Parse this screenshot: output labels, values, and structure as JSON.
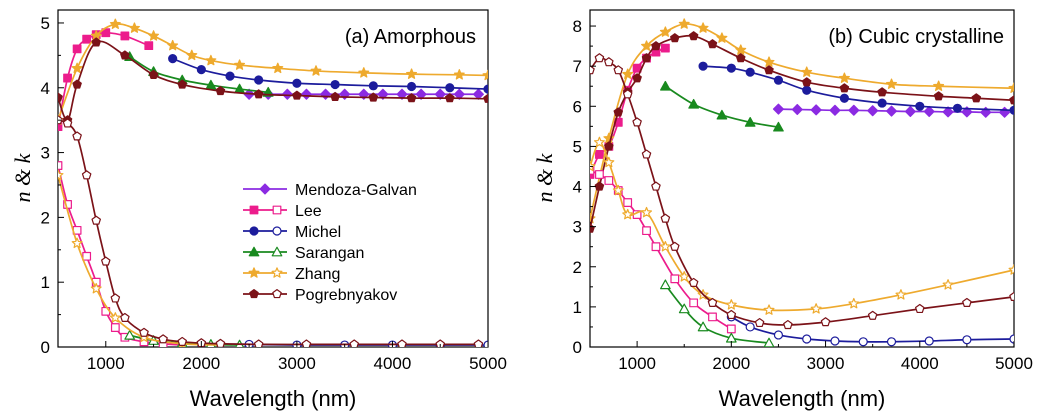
{
  "colors": {
    "Mendoza-Galvan": "#8b2be2",
    "Lee": "#ec1c8c",
    "Michel": "#1c1c9c",
    "Sarangan": "#198a1f",
    "Zhang": "#eeaa2e",
    "Pogrebnyakov": "#7b1218"
  },
  "legend": [
    {
      "name": "Mendoza-Galvan",
      "marker": "diamond",
      "fill_n": true,
      "has_k": false
    },
    {
      "name": "Lee",
      "marker": "square",
      "has_k": true
    },
    {
      "name": "Michel",
      "marker": "circle",
      "has_k": true
    },
    {
      "name": "Sarangan",
      "marker": "triangle",
      "has_k": true
    },
    {
      "name": "Zhang",
      "marker": "star",
      "has_k": true
    },
    {
      "name": "Pogrebnyakov",
      "marker": "pentagon",
      "has_k": true
    }
  ],
  "chart_data": [
    {
      "type": "line",
      "panel_title": "(a) Amorphous",
      "xlabel": "Wavelength (nm)",
      "ylabel": "n & k",
      "xlim": [
        500,
        5000
      ],
      "ylim": [
        0,
        5.2
      ],
      "xticks": [
        1000,
        2000,
        3000,
        4000,
        5000
      ],
      "yticks": [
        0,
        1,
        2,
        3,
        4,
        5
      ],
      "series": [
        {
          "name": "Mendoza-Galvan",
          "quantity": "n",
          "x": [
            2500,
            2700,
            2900,
            3100,
            3300,
            3500,
            3700,
            3900,
            4100,
            4300,
            4500,
            4700,
            4900
          ],
          "y": [
            3.9,
            3.9,
            3.9,
            3.9,
            3.9,
            3.9,
            3.9,
            3.9,
            3.9,
            3.9,
            3.9,
            3.9,
            3.9
          ]
        },
        {
          "name": "Lee",
          "quantity": "n",
          "x": [
            500,
            600,
            700,
            800,
            900,
            1000,
            1200,
            1450
          ],
          "y": [
            3.4,
            4.15,
            4.6,
            4.75,
            4.82,
            4.85,
            4.8,
            4.65
          ]
        },
        {
          "name": "Michel",
          "quantity": "n",
          "x": [
            1700,
            2000,
            2300,
            2600,
            3000,
            3400,
            3800,
            4200,
            4600,
            5000
          ],
          "y": [
            4.45,
            4.28,
            4.18,
            4.12,
            4.07,
            4.05,
            4.03,
            4.02,
            4.0,
            3.98
          ]
        },
        {
          "name": "Sarangan",
          "quantity": "n",
          "x": [
            1250,
            1500,
            1800,
            2100,
            2400,
            2700
          ],
          "y": [
            4.48,
            4.25,
            4.12,
            4.04,
            3.98,
            3.93
          ]
        },
        {
          "name": "Zhang",
          "quantity": "n",
          "x": [
            500,
            700,
            900,
            1100,
            1300,
            1500,
            1700,
            1900,
            2100,
            2400,
            2800,
            3200,
            3700,
            4200,
            4700,
            5000
          ],
          "y": [
            3.5,
            4.3,
            4.8,
            4.98,
            4.92,
            4.8,
            4.65,
            4.5,
            4.42,
            4.35,
            4.3,
            4.26,
            4.23,
            4.21,
            4.2,
            4.19
          ]
        },
        {
          "name": "Pogrebnyakov",
          "quantity": "n",
          "x": [
            500,
            600,
            700,
            900,
            1200,
            1500,
            1800,
            2200,
            2600,
            3000,
            3400,
            3800,
            4200,
            4600,
            5000
          ],
          "y": [
            3.85,
            3.5,
            4.05,
            4.7,
            4.5,
            4.2,
            4.05,
            3.95,
            3.9,
            3.88,
            3.86,
            3.85,
            3.84,
            3.84,
            3.83
          ]
        },
        {
          "name": "Lee",
          "quantity": "k",
          "x": [
            500,
            600,
            700,
            800,
            900,
            1000,
            1100,
            1200,
            1400,
            1600,
            1800
          ],
          "y": [
            2.8,
            2.2,
            1.8,
            1.4,
            1.0,
            0.55,
            0.3,
            0.15,
            0.08,
            0.05,
            0.03
          ]
        },
        {
          "name": "Michel",
          "quantity": "k",
          "x": [
            2000,
            2500,
            3000,
            3500,
            4000,
            4500,
            5000
          ],
          "y": [
            0.05,
            0.04,
            0.03,
            0.03,
            0.03,
            0.03,
            0.03
          ]
        },
        {
          "name": "Sarangan",
          "quantity": "k",
          "x": [
            1250,
            1500,
            1800,
            2100,
            2400
          ],
          "y": [
            0.18,
            0.1,
            0.06,
            0.04,
            0.03
          ]
        },
        {
          "name": "Zhang",
          "quantity": "k",
          "x": [
            500,
            700,
            900,
            1100,
            1400,
            1800,
            2200
          ],
          "y": [
            2.65,
            1.6,
            0.9,
            0.45,
            0.15,
            0.05,
            0.03
          ]
        },
        {
          "name": "Pogrebnyakov",
          "quantity": "k",
          "x": [
            500,
            600,
            700,
            800,
            900,
            1000,
            1100,
            1200,
            1400,
            1600,
            1800,
            2000,
            2200,
            2600,
            3100,
            3600,
            4100,
            4500,
            4900
          ],
          "y": [
            3.5,
            3.45,
            3.25,
            2.65,
            1.95,
            1.32,
            0.75,
            0.45,
            0.22,
            0.12,
            0.08,
            0.06,
            0.05,
            0.04,
            0.04,
            0.04,
            0.04,
            0.04,
            0.04
          ]
        }
      ]
    },
    {
      "type": "line",
      "panel_title": "(b) Cubic crystalline",
      "xlabel": "Wavelength (nm)",
      "ylabel": "n & k",
      "xlim": [
        500,
        5000
      ],
      "ylim": [
        0,
        8.4
      ],
      "xticks": [
        1000,
        2000,
        3000,
        4000,
        5000
      ],
      "yticks": [
        0,
        1,
        2,
        3,
        4,
        5,
        6,
        7,
        8
      ],
      "series": [
        {
          "name": "Mendoza-Galvan",
          "quantity": "n",
          "x": [
            2500,
            2700,
            2900,
            3100,
            3300,
            3500,
            3700,
            3900,
            4100,
            4300,
            4500,
            4700,
            4900
          ],
          "y": [
            5.93,
            5.92,
            5.91,
            5.9,
            5.9,
            5.89,
            5.88,
            5.87,
            5.87,
            5.86,
            5.86,
            5.85,
            5.85
          ]
        },
        {
          "name": "Lee",
          "quantity": "n",
          "x": [
            500,
            600,
            700,
            800,
            900,
            1000,
            1100,
            1200,
            1300
          ],
          "y": [
            4.3,
            4.8,
            5.0,
            5.6,
            6.4,
            6.95,
            7.2,
            7.35,
            7.45
          ]
        },
        {
          "name": "Michel",
          "quantity": "n",
          "x": [
            1700,
            2000,
            2200,
            2500,
            2800,
            3200,
            3600,
            4000,
            4400,
            5000
          ],
          "y": [
            7.0,
            6.95,
            6.85,
            6.65,
            6.4,
            6.2,
            6.08,
            6.0,
            5.95,
            5.9
          ]
        },
        {
          "name": "Sarangan",
          "quantity": "n",
          "x": [
            1300,
            1600,
            1900,
            2200,
            2500
          ],
          "y": [
            6.5,
            6.05,
            5.78,
            5.6,
            5.48
          ]
        },
        {
          "name": "Zhang",
          "quantity": "n",
          "x": [
            500,
            700,
            900,
            1100,
            1300,
            1500,
            1700,
            1900,
            2100,
            2400,
            2800,
            3200,
            3700,
            4200,
            5000
          ],
          "y": [
            3.2,
            5.2,
            6.8,
            7.5,
            7.85,
            8.05,
            7.95,
            7.7,
            7.4,
            7.1,
            6.85,
            6.7,
            6.55,
            6.5,
            6.45
          ]
        },
        {
          "name": "Pogrebnyakov",
          "quantity": "n",
          "x": [
            500,
            600,
            700,
            800,
            900,
            1000,
            1100,
            1200,
            1400,
            1600,
            1800,
            2100,
            2400,
            2800,
            3200,
            3600,
            4200,
            4600,
            5000
          ],
          "y": [
            2.95,
            4.0,
            5.0,
            5.85,
            6.35,
            6.7,
            7.2,
            7.5,
            7.7,
            7.75,
            7.55,
            7.2,
            6.9,
            6.6,
            6.45,
            6.35,
            6.25,
            6.2,
            6.15
          ]
        },
        {
          "name": "Lee",
          "quantity": "k",
          "x": [
            500,
            600,
            700,
            800,
            900,
            1000,
            1100,
            1200,
            1400,
            1600,
            1800,
            2000
          ],
          "y": [
            4.4,
            4.3,
            4.15,
            3.9,
            3.6,
            3.3,
            2.9,
            2.5,
            1.7,
            1.1,
            0.75,
            0.45
          ]
        },
        {
          "name": "Michel",
          "quantity": "k",
          "x": [
            2000,
            2200,
            2500,
            2800,
            3100,
            3400,
            3700,
            4100,
            4500,
            5000
          ],
          "y": [
            0.75,
            0.5,
            0.3,
            0.2,
            0.15,
            0.13,
            0.13,
            0.15,
            0.18,
            0.2
          ]
        },
        {
          "name": "Sarangan",
          "quantity": "k",
          "x": [
            1300,
            1500,
            1700,
            2000,
            2400
          ],
          "y": [
            1.55,
            0.95,
            0.5,
            0.22,
            0.1
          ]
        },
        {
          "name": "Zhang",
          "quantity": "k",
          "x": [
            500,
            600,
            700,
            800,
            900,
            1100,
            1300,
            1500,
            1700,
            2000,
            2400,
            2900,
            3300,
            3800,
            4300,
            5000
          ],
          "y": [
            4.5,
            5.1,
            4.6,
            3.9,
            3.3,
            3.35,
            2.5,
            1.75,
            1.3,
            1.05,
            0.92,
            0.95,
            1.08,
            1.3,
            1.55,
            1.92
          ]
        },
        {
          "name": "Pogrebnyakov",
          "quantity": "k",
          "x": [
            500,
            600,
            700,
            800,
            900,
            1000,
            1100,
            1200,
            1300,
            1400,
            1600,
            1800,
            2000,
            2300,
            2600,
            3000,
            3500,
            4000,
            4500,
            5000
          ],
          "y": [
            6.9,
            7.2,
            7.1,
            6.9,
            6.3,
            5.6,
            4.8,
            4.0,
            3.2,
            2.5,
            1.6,
            1.1,
            0.8,
            0.6,
            0.55,
            0.62,
            0.78,
            0.95,
            1.1,
            1.25
          ]
        }
      ]
    }
  ]
}
